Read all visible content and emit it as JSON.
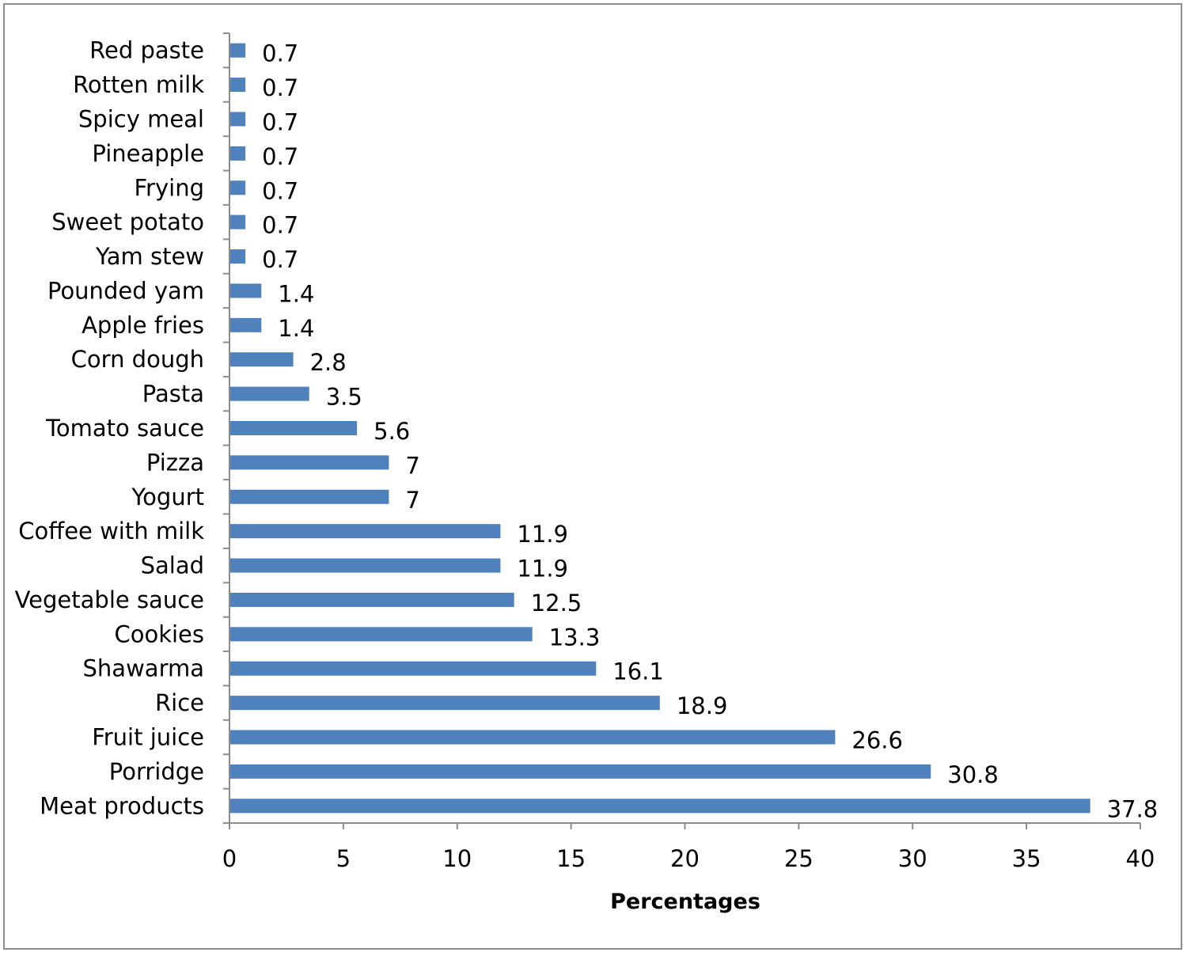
{
  "chart_data": {
    "type": "bar",
    "orientation": "horizontal",
    "title": "",
    "xlabel": "Percentages",
    "ylabel": "",
    "xlim": [
      0,
      40
    ],
    "x_ticks": [
      0,
      5,
      10,
      15,
      20,
      25,
      30,
      35,
      40
    ],
    "grid": false,
    "legend": "none",
    "bar_color": "#4F81BD",
    "categories": [
      "Red paste",
      "Rotten milk",
      "Spicy meal",
      "Pineapple",
      "Frying",
      "Sweet potato",
      "Yam stew",
      "Pounded yam",
      "Apple fries",
      "Corn dough",
      "Pasta",
      "Tomato sauce",
      "Pizza",
      "Yogurt",
      "Coffee with milk",
      "Salad",
      "Vegetable sauce",
      "Cookies",
      "Shawarma",
      "Rice",
      "Fruit juice",
      "Porridge",
      "Meat products"
    ],
    "values": [
      0.7,
      0.7,
      0.7,
      0.7,
      0.7,
      0.7,
      0.7,
      1.4,
      1.4,
      2.8,
      3.5,
      5.6,
      7,
      7,
      11.9,
      11.9,
      12.5,
      13.3,
      16.1,
      18.9,
      26.6,
      30.8,
      37.8
    ],
    "data_labels": [
      "0.7",
      "0.7",
      "0.7",
      "0.7",
      "0.7",
      "0.7",
      "0.7",
      "1.4",
      "1.4",
      "2.8",
      "3.5",
      "5.6",
      "7",
      "7",
      "11.9",
      "11.9",
      "12.5",
      "13.3",
      "16.1",
      "18.9",
      "26.6",
      "30.8",
      "37.8"
    ]
  }
}
